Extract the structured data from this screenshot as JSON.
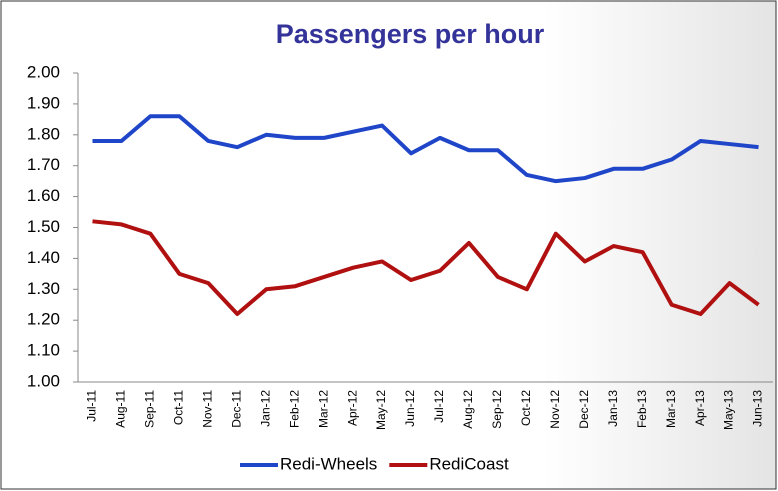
{
  "chart_data": {
    "type": "line",
    "title": "Passengers per hour",
    "categories": [
      "Jul-11",
      "Aug-11",
      "Sep-11",
      "Oct-11",
      "Nov-11",
      "Dec-11",
      "Jan-12",
      "Feb-12",
      "Mar-12",
      "Apr-12",
      "May-12",
      "Jun-12",
      "Jul-12",
      "Aug-12",
      "Sep-12",
      "Oct-12",
      "Nov-12",
      "Dec-12",
      "Jan-13",
      "Feb-13",
      "Mar-13",
      "Apr-13",
      "May-13",
      "Jun-13"
    ],
    "series": [
      {
        "name": "Redi-Wheels",
        "color": "#1f45c8",
        "values": [
          1.78,
          1.78,
          1.86,
          1.86,
          1.78,
          1.76,
          1.8,
          1.79,
          1.79,
          1.81,
          1.83,
          1.74,
          1.79,
          1.75,
          1.75,
          1.67,
          1.65,
          1.66,
          1.69,
          1.69,
          1.72,
          1.78,
          1.77,
          1.76
        ]
      },
      {
        "name": "RediCoast",
        "color": "#b01010",
        "values": [
          1.52,
          1.51,
          1.48,
          1.35,
          1.32,
          1.22,
          1.3,
          1.31,
          1.34,
          1.37,
          1.39,
          1.33,
          1.36,
          1.45,
          1.34,
          1.3,
          1.48,
          1.39,
          1.44,
          1.42,
          1.25,
          1.22,
          1.32,
          1.25
        ]
      }
    ],
    "ylim": [
      1,
      2
    ],
    "yticks": [
      {
        "value": 1,
        "label": "1.00"
      },
      {
        "value": 1.1,
        "label": "1.10"
      },
      {
        "value": 1.2,
        "label": "1.20"
      },
      {
        "value": 1.3,
        "label": "1.30"
      },
      {
        "value": 1.4,
        "label": "1.40"
      },
      {
        "value": 1.5,
        "label": "1.50"
      },
      {
        "value": 1.6,
        "label": "1.60"
      },
      {
        "value": 1.7,
        "label": "1.70"
      },
      {
        "value": 1.8,
        "label": "1.80"
      },
      {
        "value": 1.9,
        "label": "1.90"
      },
      {
        "value": 2,
        "label": "2.00"
      }
    ],
    "legend": "bottom"
  }
}
